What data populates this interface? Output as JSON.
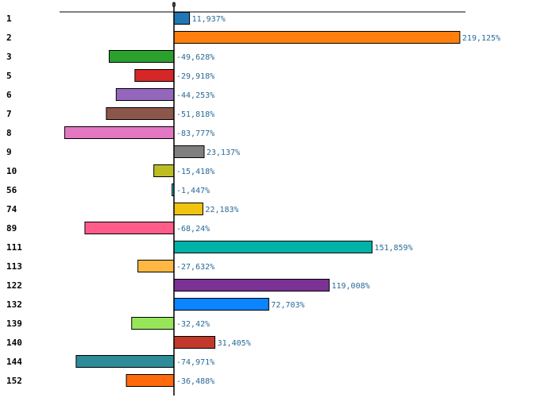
{
  "chart_data": {
    "type": "bar",
    "orientation": "horizontal",
    "title": "",
    "xlabel": "",
    "ylabel": "",
    "zero_tick_label": "0",
    "xlim": [
      -100,
      255
    ],
    "grid": false,
    "legend": "none",
    "unit_suffix": "%",
    "categories": [
      "1",
      "2",
      "3",
      "5",
      "6",
      "7",
      "8",
      "9",
      "10",
      "56",
      "74",
      "89",
      "111",
      "113",
      "122",
      "132",
      "139",
      "140",
      "144",
      "152"
    ],
    "values": [
      11.937,
      219.125,
      -49.628,
      -29.918,
      -44.253,
      -51.818,
      -83.777,
      23.137,
      -15.418,
      -1.447,
      22.183,
      -68.24,
      151.859,
      -27.632,
      119.008,
      72.703,
      -32.42,
      31.405,
      -74.971,
      -36.488
    ],
    "value_labels": [
      "11,937%",
      "219,125%",
      "-49,628%",
      "-29,918%",
      "-44,253%",
      "-51,818%",
      "-83,777%",
      "23,137%",
      "-15,418%",
      "-1,447%",
      "22,183%",
      "-68,24%",
      "151,859%",
      "-27,632%",
      "119,008%",
      "72,703%",
      "-32,42%",
      "31,405%",
      "-74,971%",
      "-36,488%"
    ],
    "colors": [
      "#1f77b4",
      "#ff7f0e",
      "#2ca02c",
      "#d62728",
      "#9467bd",
      "#8c564b",
      "#e377c2",
      "#7f7f7f",
      "#bcbd22",
      "#17becf",
      "#f1c40f",
      "#ff5c8a",
      "#00b3a6",
      "#ffb844",
      "#7b3294",
      "#0a84ff",
      "#97e65a",
      "#c0392b",
      "#2e8b9a",
      "#ff6a0d"
    ],
    "value_label_color": "#2a6a96"
  }
}
